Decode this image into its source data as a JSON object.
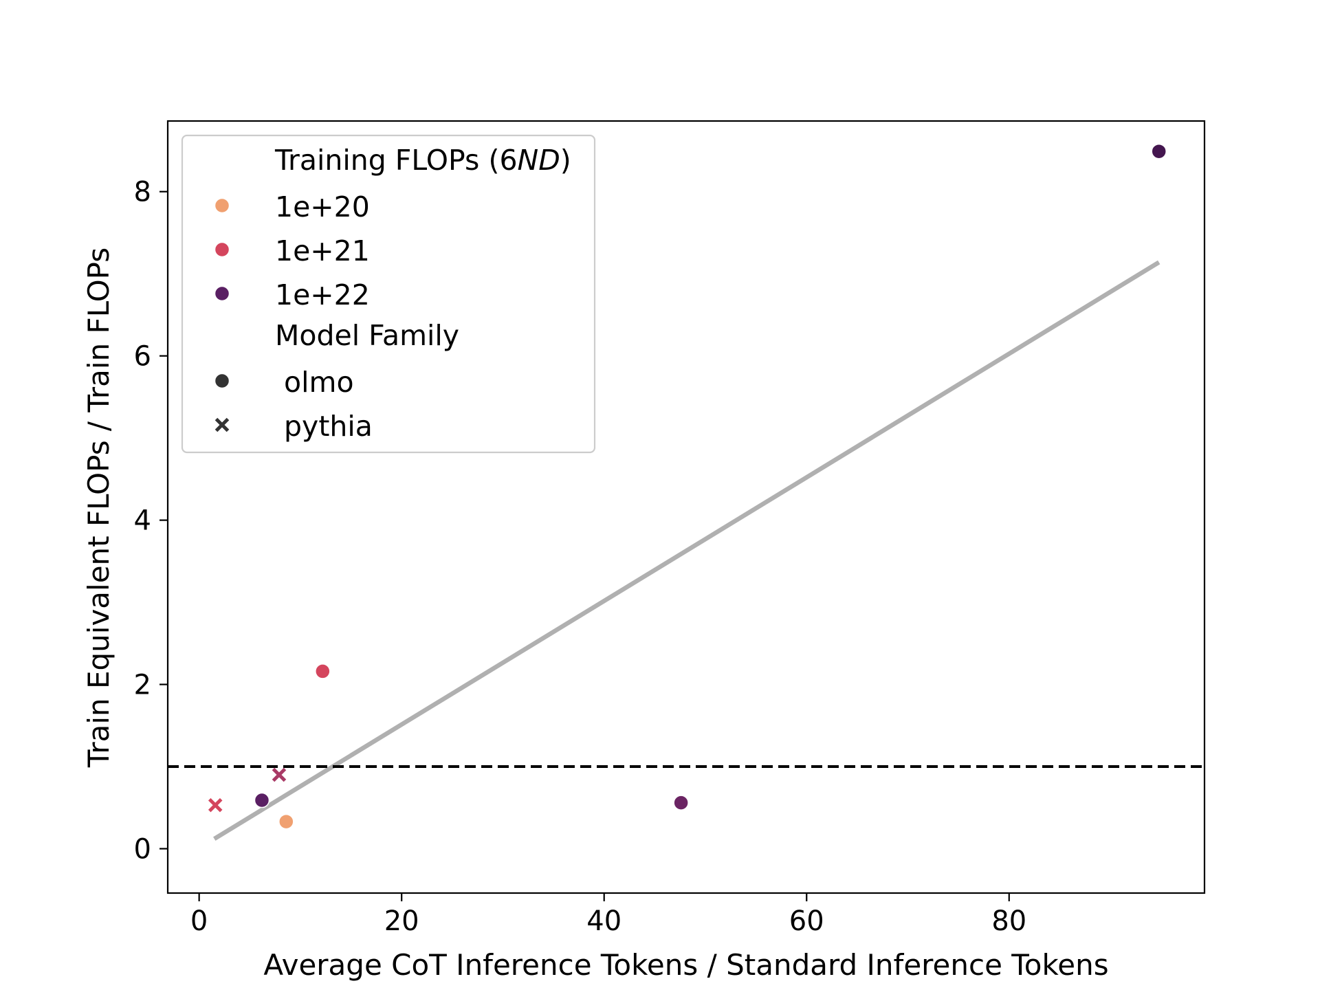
{
  "chart_data": {
    "type": "scatter",
    "xlabel": "Average CoT Inference Tokens / Standard Inference Tokens",
    "ylabel": "Train Equivalent FLOPs / Train FLOPs",
    "xlim": [
      -3.1,
      99.3
    ],
    "ylim": [
      -0.54,
      8.86
    ],
    "xticks": [
      0,
      20,
      40,
      60,
      80
    ],
    "yticks": [
      0,
      2,
      4,
      6,
      8
    ],
    "xtick_labels": [
      "0",
      "20",
      "40",
      "60",
      "80"
    ],
    "ytick_labels": [
      "0",
      "2",
      "4",
      "6",
      "8"
    ],
    "grid": false,
    "points": [
      {
        "x": 94.8,
        "y": 8.49,
        "flops": "1e+22",
        "family": "olmo"
      },
      {
        "x": 12.2,
        "y": 2.16,
        "flops": "1e+21",
        "family": "olmo"
      },
      {
        "x": 6.2,
        "y": 0.59,
        "flops": "1e+22",
        "family": "olmo"
      },
      {
        "x": 8.6,
        "y": 0.33,
        "flops": "1e+20",
        "family": "olmo"
      },
      {
        "x": 47.6,
        "y": 0.56,
        "flops": "1e+22",
        "family": "olmo"
      },
      {
        "x": 1.6,
        "y": 0.53,
        "flops": "1e+21",
        "family": "pythia"
      },
      {
        "x": 7.9,
        "y": 0.9,
        "flops": "1e+21",
        "family": "pythia"
      }
    ],
    "fit_line": {
      "x": [
        1.5,
        94.8
      ],
      "y": [
        0.12,
        7.14
      ],
      "color": "#b0b0b0"
    },
    "reference_line": {
      "y": 1.0,
      "style": "dashed",
      "color": "#000000"
    },
    "legend": {
      "placement": "upper-left",
      "hue_title": "Training FLOPs (6ND)",
      "hue_title_prefix": "Training FLOPs (6",
      "hue_title_italic": "ND",
      "hue_title_suffix": ")",
      "hue_entries": [
        {
          "label": "1e+20",
          "color": "#f0a070"
        },
        {
          "label": "1e+21",
          "color": "#d4455d"
        },
        {
          "label": "1e+22",
          "color": "#5a1f63"
        }
      ],
      "style_title": "Model Family",
      "style_entries": [
        {
          "label": " olmo",
          "marker": "circle"
        },
        {
          "label": " pythia",
          "marker": "x"
        }
      ]
    },
    "colors": {
      "1e+20": "#f0a070",
      "1e+21": "#d4455d",
      "1e+22": "#5a1f63",
      "point_1e22_high": "#44164f",
      "point_1e22_mid": "#6b2463",
      "pythia_1e21_mid": "#a93a66"
    }
  }
}
